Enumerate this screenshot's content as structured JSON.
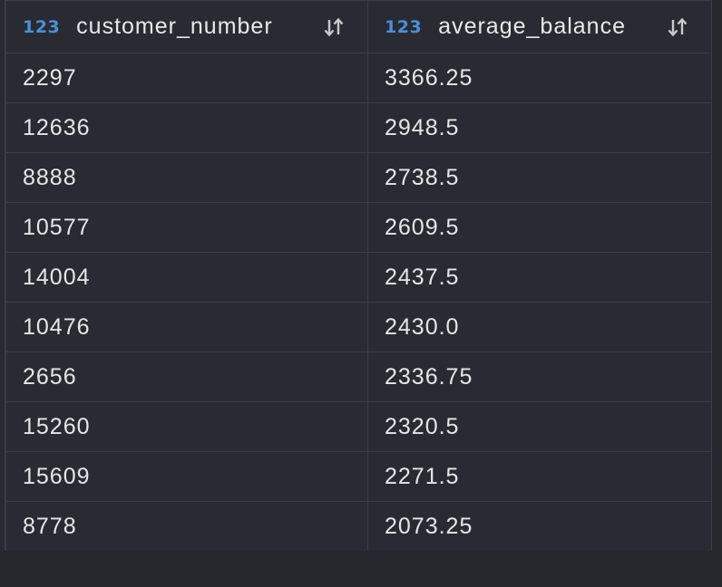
{
  "columns": [
    {
      "type_badge": "123",
      "name": "customer_number",
      "sort_icon": "sort-icon"
    },
    {
      "type_badge": "123",
      "name": "average_balance",
      "sort_icon": "sort-icon"
    }
  ],
  "rows": [
    [
      "2297",
      "3366.25"
    ],
    [
      "12636",
      "2948.5"
    ],
    [
      "8888",
      "2738.5"
    ],
    [
      "10577",
      "2609.5"
    ],
    [
      "14004",
      "2437.5"
    ],
    [
      "10476",
      "2430.0"
    ],
    [
      "2656",
      "2336.75"
    ],
    [
      "15260",
      "2320.5"
    ],
    [
      "15609",
      "2271.5"
    ],
    [
      "8778",
      "2073.25"
    ]
  ]
}
